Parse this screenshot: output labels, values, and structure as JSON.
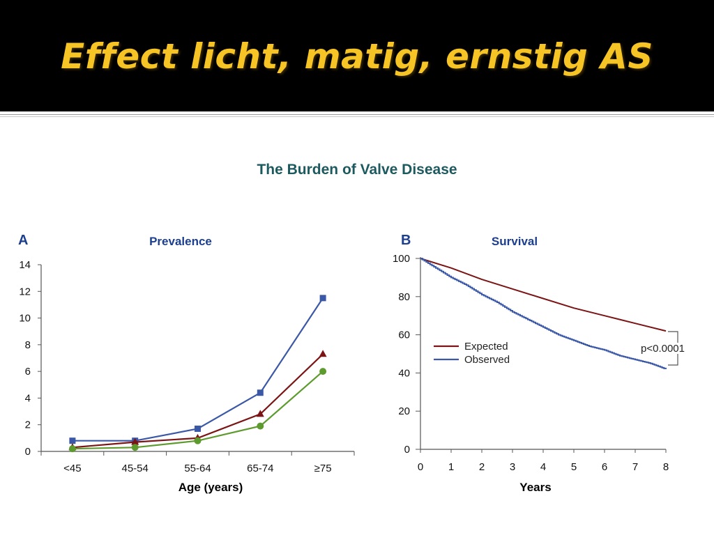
{
  "slide": {
    "title": "Effect licht, matig, ernstig AS",
    "figure_title": "The Burden of Valve Disease"
  },
  "colors": {
    "title_text": "#f6c425",
    "title_band": "#000000",
    "figure_title": "#1d5a5f",
    "panel_title": "#1c3e8e",
    "series_blue": "#3a58a6",
    "series_red": "#7b1414",
    "series_green": "#5d9b2e"
  },
  "chart_data": [
    {
      "type": "line",
      "panel_letter": "A",
      "title": "Prevalence",
      "xlabel": "Age (years)",
      "ylabel": "",
      "categories": [
        "<45",
        "45-54",
        "55-64",
        "65-74",
        "≥75"
      ],
      "ylim": [
        0,
        14
      ],
      "yticks": [
        "0",
        "2",
        "4",
        "6",
        "8",
        "10",
        "12",
        "14"
      ],
      "legend": "none",
      "grid": false,
      "series": [
        {
          "color": "#3a58a6",
          "marker": "square",
          "values": [
            0.8,
            0.8,
            1.7,
            4.4,
            11.5
          ]
        },
        {
          "color": "#7b1414",
          "marker": "triangle",
          "values": [
            0.3,
            0.7,
            1.0,
            2.8,
            7.3
          ]
        },
        {
          "color": "#5d9b2e",
          "marker": "circle",
          "values": [
            0.2,
            0.3,
            0.8,
            1.9,
            6.0
          ]
        }
      ]
    },
    {
      "type": "line",
      "panel_letter": "B",
      "title": "Survival",
      "xlabel": "Years",
      "ylabel": "",
      "xlim": [
        0,
        8
      ],
      "ylim": [
        0,
        100
      ],
      "xticks": [
        "0",
        "1",
        "2",
        "3",
        "4",
        "5",
        "6",
        "7",
        "8"
      ],
      "yticks": [
        "0",
        "20",
        "40",
        "60",
        "80",
        "100"
      ],
      "legend": "middle-left",
      "grid": false,
      "annotation": "p<0.0001",
      "series": [
        {
          "name": "Expected",
          "color": "#7b1414",
          "x": [
            0,
            1,
            2,
            3,
            4,
            5,
            6,
            7,
            8
          ],
          "y": [
            100,
            95,
            89,
            84,
            79,
            74,
            70,
            66,
            62
          ]
        },
        {
          "name": "Observed",
          "color": "#3a58a6",
          "x": [
            0,
            0.5,
            1,
            1.5,
            2,
            2.5,
            3,
            3.5,
            4,
            4.5,
            5,
            5.5,
            6,
            6.5,
            7,
            7.5,
            8
          ],
          "y": [
            100,
            95,
            90,
            86,
            81,
            77,
            72,
            68,
            64,
            60,
            57,
            54,
            52,
            49,
            47,
            45,
            42
          ]
        }
      ]
    }
  ]
}
